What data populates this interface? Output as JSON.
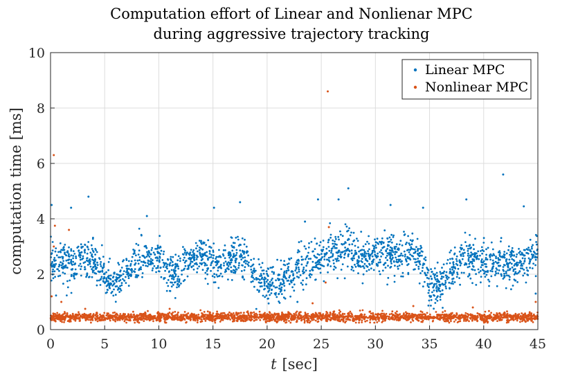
{
  "chart_data": {
    "type": "scatter",
    "title_line1": "Computation effort of Linear and Nonlienar MPC",
    "title_line2": "during aggressive trajectory tracking",
    "xlabel_var": "t",
    "xlabel_unit": "[sec]",
    "ylabel": "computation time [ms]",
    "xlim": [
      0,
      45
    ],
    "ylim": [
      0,
      10
    ],
    "xticks": [
      "0",
      "5",
      "10",
      "15",
      "20",
      "25",
      "30",
      "35",
      "40",
      "45"
    ],
    "yticks": [
      "0",
      "2",
      "4",
      "6",
      "8",
      "10"
    ],
    "grid": true,
    "legend_position": "top-right",
    "series": [
      {
        "name": "Linear MPC",
        "color": "#0072BD",
        "approx_level_profile": {
          "x": [
            0,
            1,
            2,
            3,
            4,
            5,
            6,
            7,
            8,
            9,
            10,
            11,
            12,
            13,
            14,
            15,
            16,
            17,
            18,
            19,
            20,
            21,
            22,
            23,
            24,
            25,
            26,
            27,
            28,
            29,
            30,
            31,
            32,
            33,
            34,
            35,
            36,
            37,
            38,
            39,
            40,
            41,
            42,
            43,
            44,
            45
          ],
          "y": [
            2.4,
            2.5,
            2.3,
            2.6,
            2.5,
            1.8,
            1.7,
            2.0,
            2.5,
            2.7,
            2.5,
            1.9,
            2.1,
            2.5,
            2.6,
            2.4,
            2.3,
            2.6,
            2.5,
            1.8,
            1.7,
            1.6,
            2.0,
            2.3,
            2.4,
            2.5,
            2.8,
            2.9,
            2.7,
            2.7,
            2.7,
            2.8,
            2.7,
            2.8,
            2.6,
            1.6,
            1.6,
            2.1,
            2.5,
            2.6,
            2.4,
            2.3,
            2.3,
            2.4,
            2.5,
            2.7
          ]
        },
        "spread": 0.35,
        "notable_points": [
          {
            "x": 0.1,
            "y": 4.5
          },
          {
            "x": 1.9,
            "y": 4.4
          },
          {
            "x": 3.5,
            "y": 4.8
          },
          {
            "x": 8.9,
            "y": 4.1
          },
          {
            "x": 15.1,
            "y": 4.4
          },
          {
            "x": 17.5,
            "y": 4.6
          },
          {
            "x": 23.5,
            "y": 3.9
          },
          {
            "x": 24.7,
            "y": 4.7
          },
          {
            "x": 26.6,
            "y": 4.7
          },
          {
            "x": 27.5,
            "y": 5.1
          },
          {
            "x": 31.4,
            "y": 4.5
          },
          {
            "x": 34.4,
            "y": 4.4
          },
          {
            "x": 38.4,
            "y": 4.7
          },
          {
            "x": 41.8,
            "y": 5.6
          },
          {
            "x": 43.7,
            "y": 4.45
          },
          {
            "x": 44.8,
            "y": 1.3
          },
          {
            "x": 22.8,
            "y": 1.0
          }
        ]
      },
      {
        "name": "Nonlinear MPC",
        "color": "#D95319",
        "approx_level_profile": {
          "x": [
            0,
            45
          ],
          "y": [
            0.45,
            0.45
          ]
        },
        "spread": 0.08,
        "notable_points": [
          {
            "x": 0.3,
            "y": 6.3
          },
          {
            "x": 0.4,
            "y": 3.75
          },
          {
            "x": 0.3,
            "y": 3.0
          },
          {
            "x": 0.1,
            "y": 1.2
          },
          {
            "x": 1.0,
            "y": 1.0
          },
          {
            "x": 1.7,
            "y": 3.6
          },
          {
            "x": 25.6,
            "y": 8.6
          },
          {
            "x": 25.7,
            "y": 3.7
          },
          {
            "x": 25.4,
            "y": 1.7
          },
          {
            "x": 24.2,
            "y": 0.95
          },
          {
            "x": 44.8,
            "y": 1.0
          },
          {
            "x": 33.5,
            "y": 0.85
          },
          {
            "x": 3.2,
            "y": 0.75
          },
          {
            "x": 11.0,
            "y": 0.75
          },
          {
            "x": 39.0,
            "y": 0.8
          }
        ]
      }
    ]
  }
}
